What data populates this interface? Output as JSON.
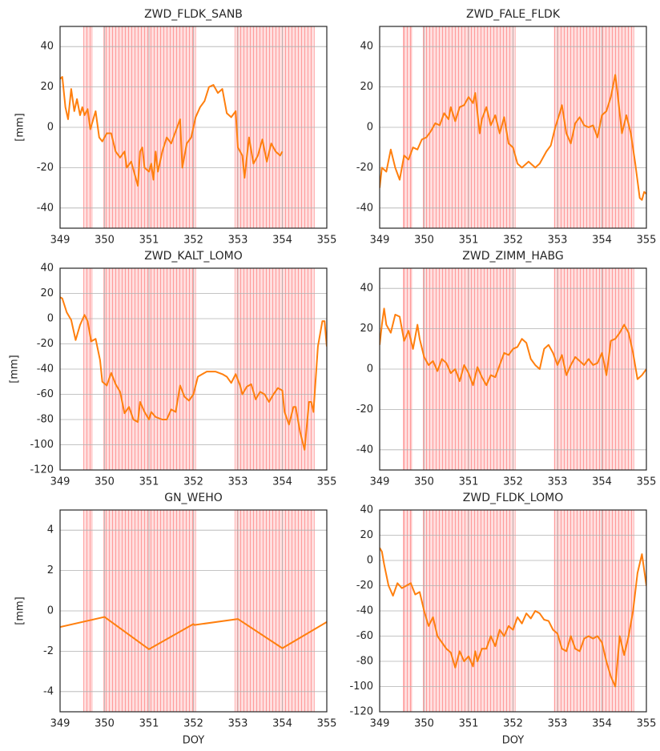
{
  "chart_data": [
    {
      "type": "line",
      "title": "ZWD_FLDK_SANB",
      "ylabel": "[mm]",
      "color": "#ff7f0e",
      "grid": true,
      "xlim": [
        349,
        355
      ],
      "xticks": [
        349,
        350,
        351,
        352,
        353,
        354,
        355
      ],
      "ylim": [
        -50,
        50
      ],
      "yticks": [
        -40,
        -20,
        0,
        20,
        40
      ],
      "highlight_spans": [
        [
          349.53,
          349.72
        ],
        [
          349.98,
          352.05
        ],
        [
          352.93,
          354.72
        ]
      ],
      "highlight_color": "#ff9a9a",
      "x": [
        349.0,
        349.05,
        349.12,
        349.18,
        349.25,
        349.32,
        349.38,
        349.45,
        349.5,
        349.55,
        349.62,
        349.68,
        349.8,
        349.88,
        349.95,
        350.05,
        350.15,
        350.25,
        350.35,
        350.45,
        350.5,
        350.6,
        350.7,
        350.75,
        350.8,
        350.85,
        350.9,
        351.0,
        351.05,
        351.1,
        351.15,
        351.2,
        351.3,
        351.4,
        351.5,
        351.6,
        351.7,
        351.75,
        351.85,
        351.95,
        352.05,
        352.15,
        352.25,
        352.35,
        352.45,
        352.55,
        352.65,
        352.75,
        352.85,
        352.95,
        353.0,
        353.1,
        353.15,
        353.25,
        353.35,
        353.45,
        353.55,
        353.65,
        353.75,
        353.85,
        353.95,
        354.0
      ],
      "values": [
        24,
        25,
        10,
        4,
        19,
        8,
        14,
        6,
        10,
        6,
        9,
        -1,
        8,
        -5,
        -7,
        -3,
        -3,
        -12,
        -15,
        -12,
        -20,
        -17,
        -25,
        -29,
        -12,
        -10,
        -20,
        -22,
        -18,
        -26,
        -12,
        -22,
        -12,
        -5,
        -8,
        -2,
        4,
        -20,
        -8,
        -5,
        5,
        10,
        13,
        20,
        21,
        17,
        19,
        7,
        5,
        8,
        -10,
        -14,
        -25,
        -5,
        -18,
        -14,
        -6,
        -17,
        -8,
        -12,
        -14,
        -12
      ]
    },
    {
      "type": "line",
      "title": "ZWD_FALE_FLDK",
      "color": "#ff7f0e",
      "grid": true,
      "xlim": [
        349,
        355
      ],
      "xticks": [
        349,
        350,
        351,
        352,
        353,
        354,
        355
      ],
      "ylim": [
        -50,
        50
      ],
      "yticks": [
        -40,
        -20,
        0,
        20,
        40
      ],
      "highlight_spans": [
        [
          349.53,
          349.72
        ],
        [
          349.98,
          352.05
        ],
        [
          352.93,
          354.72
        ]
      ],
      "highlight_color": "#ff9a9a",
      "x": [
        349.0,
        349.05,
        349.15,
        349.25,
        349.35,
        349.45,
        349.55,
        349.65,
        349.75,
        349.85,
        349.95,
        350.05,
        350.15,
        350.25,
        350.35,
        350.45,
        350.55,
        350.6,
        350.7,
        350.8,
        350.9,
        351.0,
        351.1,
        351.15,
        351.25,
        351.3,
        351.4,
        351.5,
        351.6,
        351.7,
        351.8,
        351.9,
        352.0,
        352.1,
        352.2,
        352.35,
        352.5,
        352.6,
        352.75,
        352.85,
        352.95,
        353.05,
        353.1,
        353.2,
        353.3,
        353.4,
        353.5,
        353.6,
        353.7,
        353.8,
        353.9,
        354.0,
        354.1,
        354.2,
        354.3,
        354.35,
        354.45,
        354.55,
        354.65,
        354.75,
        354.85,
        354.9,
        354.95,
        355.0
      ],
      "values": [
        -30,
        -20,
        -22,
        -11,
        -20,
        -26,
        -14,
        -16,
        -10,
        -11,
        -6,
        -5,
        -2,
        2,
        1,
        7,
        4,
        10,
        3,
        10,
        11,
        15,
        12,
        17,
        -3,
        4,
        10,
        1,
        6,
        -3,
        5,
        -8,
        -10,
        -18,
        -20,
        -17,
        -20,
        -18,
        -12,
        -9,
        0,
        7,
        11,
        -3,
        -8,
        2,
        5,
        1,
        0,
        1,
        -5,
        6,
        8,
        15,
        26,
        17,
        -3,
        6,
        -3,
        -18,
        -35,
        -36,
        -32,
        -33
      ]
    },
    {
      "type": "line",
      "title": "ZWD_KALT_LOMO",
      "ylabel": "[mm]",
      "color": "#ff7f0e",
      "grid": true,
      "xlim": [
        349,
        355
      ],
      "xticks": [
        349,
        350,
        351,
        352,
        353,
        354,
        355
      ],
      "ylim": [
        -120,
        40
      ],
      "yticks": [
        -120,
        -100,
        -80,
        -60,
        -40,
        -20,
        0,
        20,
        40
      ],
      "highlight_spans": [
        [
          349.53,
          349.72
        ],
        [
          349.98,
          352.05
        ],
        [
          352.93,
          354.72
        ]
      ],
      "highlight_color": "#ff9a9a",
      "x": [
        349.0,
        349.05,
        349.15,
        349.25,
        349.35,
        349.45,
        349.55,
        349.62,
        349.7,
        349.8,
        349.9,
        349.95,
        350.05,
        350.15,
        350.25,
        350.35,
        350.45,
        350.55,
        350.65,
        350.75,
        350.8,
        350.9,
        351.0,
        351.05,
        351.15,
        351.3,
        351.4,
        351.5,
        351.6,
        351.7,
        351.8,
        351.9,
        352.0,
        352.1,
        352.2,
        352.3,
        352.5,
        352.65,
        352.75,
        352.85,
        352.95,
        353.05,
        353.1,
        353.2,
        353.3,
        353.4,
        353.5,
        353.6,
        353.7,
        353.8,
        353.9,
        354.0,
        354.05,
        354.15,
        354.25,
        354.3,
        354.4,
        354.5,
        354.6,
        354.65,
        354.7,
        354.8,
        354.9,
        354.95,
        355.0
      ],
      "values": [
        17,
        16,
        5,
        -1,
        -17,
        -5,
        3,
        -2,
        -18,
        -16,
        -33,
        -50,
        -53,
        -43,
        -52,
        -58,
        -75,
        -70,
        -80,
        -82,
        -66,
        -74,
        -80,
        -74,
        -78,
        -80,
        -80,
        -72,
        -74,
        -53,
        -62,
        -65,
        -60,
        -46,
        -44,
        -42,
        -42,
        -44,
        -46,
        -51,
        -44,
        -53,
        -60,
        -54,
        -52,
        -64,
        -58,
        -60,
        -66,
        -60,
        -55,
        -57,
        -74,
        -84,
        -70,
        -70,
        -90,
        -104,
        -66,
        -66,
        -74,
        -22,
        -2,
        -2,
        -22
      ]
    },
    {
      "type": "line",
      "title": "ZWD_ZIMM_HABG",
      "color": "#ff7f0e",
      "grid": true,
      "xlim": [
        349,
        355
      ],
      "xticks": [
        349,
        350,
        351,
        352,
        353,
        354,
        355
      ],
      "ylim": [
        -50,
        50
      ],
      "yticks": [
        -40,
        -20,
        0,
        20,
        40
      ],
      "highlight_spans": [
        [
          349.53,
          349.72
        ],
        [
          349.98,
          352.05
        ],
        [
          352.93,
          354.72
        ]
      ],
      "highlight_color": "#ff9a9a",
      "x": [
        349.0,
        349.05,
        349.1,
        349.15,
        349.25,
        349.35,
        349.45,
        349.55,
        349.65,
        349.75,
        349.85,
        349.9,
        350.0,
        350.1,
        350.2,
        350.3,
        350.4,
        350.5,
        350.6,
        350.7,
        350.8,
        350.9,
        351.0,
        351.1,
        351.2,
        351.3,
        351.4,
        351.5,
        351.6,
        351.7,
        351.8,
        351.9,
        352.0,
        352.1,
        352.2,
        352.3,
        352.4,
        352.5,
        352.6,
        352.7,
        352.8,
        352.9,
        353.0,
        353.1,
        353.2,
        353.3,
        353.4,
        353.5,
        353.6,
        353.7,
        353.8,
        353.9,
        354.0,
        354.05,
        354.1,
        354.15,
        354.2,
        354.3,
        354.4,
        354.5,
        354.6,
        354.7,
        354.8,
        354.9,
        355.0
      ],
      "values": [
        12,
        22,
        30,
        22,
        18,
        27,
        26,
        14,
        19,
        10,
        22,
        15,
        6,
        2,
        4,
        -1,
        5,
        3,
        -2,
        0,
        -6,
        2,
        -2,
        -8,
        1,
        -4,
        -8,
        -3,
        -4,
        2,
        8,
        7,
        10,
        11,
        15,
        13,
        5,
        2,
        0,
        10,
        12,
        8,
        2,
        7,
        -3,
        2,
        6,
        4,
        2,
        5,
        2,
        3,
        8,
        3,
        -3,
        5,
        14,
        15,
        18,
        22,
        18,
        8,
        -5,
        -3,
        0
      ]
    },
    {
      "type": "line",
      "title": "GN_WEHO",
      "ylabel": "[mm]",
      "xlabel": "DOY",
      "color": "#ff7f0e",
      "grid": true,
      "xlim": [
        349,
        355
      ],
      "xticks": [
        349,
        350,
        351,
        352,
        353,
        354,
        355
      ],
      "ylim": [
        -5,
        5
      ],
      "yticks": [
        -4,
        -2,
        0,
        2,
        4
      ],
      "highlight_spans": [
        [
          349.53,
          349.72
        ],
        [
          349.98,
          352.05
        ],
        [
          352.93,
          354.72
        ]
      ],
      "highlight_color": "#ff9a9a",
      "x": [
        349,
        350,
        351,
        352,
        352.02,
        353,
        354,
        355
      ],
      "values": [
        -0.8,
        -0.3,
        -1.9,
        -0.65,
        -0.7,
        -0.4,
        -1.85,
        -0.55
      ]
    },
    {
      "type": "line",
      "title": "ZWD_FLDK_LOMO",
      "xlabel": "DOY",
      "color": "#ff7f0e",
      "grid": true,
      "xlim": [
        349,
        355
      ],
      "xticks": [
        349,
        350,
        351,
        352,
        353,
        354,
        355
      ],
      "ylim": [
        -120,
        40
      ],
      "yticks": [
        -120,
        -100,
        -80,
        -60,
        -40,
        -20,
        0,
        20,
        40
      ],
      "highlight_spans": [
        [
          349.53,
          349.72
        ],
        [
          349.98,
          352.05
        ],
        [
          352.93,
          354.72
        ]
      ],
      "highlight_color": "#ff9a9a",
      "x": [
        349.0,
        349.05,
        349.1,
        349.2,
        349.3,
        349.4,
        349.5,
        349.6,
        349.7,
        349.8,
        349.9,
        350.0,
        350.1,
        350.2,
        350.3,
        350.4,
        350.5,
        350.6,
        350.7,
        350.8,
        350.9,
        351.0,
        351.1,
        351.15,
        351.2,
        351.3,
        351.4,
        351.5,
        351.6,
        351.7,
        351.8,
        351.9,
        352.0,
        352.1,
        352.2,
        352.3,
        352.4,
        352.5,
        352.6,
        352.7,
        352.8,
        352.9,
        353.0,
        353.1,
        353.2,
        353.3,
        353.4,
        353.5,
        353.6,
        353.7,
        353.8,
        353.9,
        354.0,
        354.1,
        354.2,
        354.3,
        354.4,
        354.5,
        354.6,
        354.7,
        354.8,
        354.9,
        355.0
      ],
      "values": [
        10,
        7,
        -3,
        -20,
        -28,
        -18,
        -22,
        -20,
        -18,
        -27,
        -25,
        -40,
        -52,
        -45,
        -60,
        -65,
        -70,
        -73,
        -85,
        -72,
        -80,
        -76,
        -84,
        -72,
        -80,
        -70,
        -70,
        -60,
        -68,
        -55,
        -60,
        -52,
        -55,
        -45,
        -50,
        -42,
        -46,
        -40,
        -42,
        -47,
        -48,
        -55,
        -58,
        -70,
        -72,
        -60,
        -70,
        -72,
        -62,
        -60,
        -62,
        -60,
        -65,
        -80,
        -92,
        -100,
        -60,
        -75,
        -60,
        -40,
        -10,
        5,
        -20
      ]
    }
  ]
}
